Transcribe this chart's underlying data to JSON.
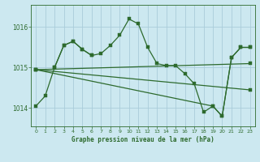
{
  "title": "Graphe pression niveau de la mer (hPa)",
  "background_color": "#cce8f0",
  "grid_color": "#aaccda",
  "line_color": "#2d6a2d",
  "xlim": [
    -0.5,
    23.5
  ],
  "ylim": [
    1013.55,
    1016.55
  ],
  "yticks": [
    1014,
    1015,
    1016
  ],
  "xticks": [
    0,
    1,
    2,
    3,
    4,
    5,
    6,
    7,
    8,
    9,
    10,
    11,
    12,
    13,
    14,
    15,
    16,
    17,
    18,
    19,
    20,
    21,
    22,
    23
  ],
  "series": [
    {
      "x": [
        0,
        1,
        2,
        3,
        4,
        5,
        6,
        7,
        8,
        9,
        10,
        11,
        12,
        13,
        14,
        15,
        16,
        17,
        18,
        19,
        20,
        21,
        22,
        23
      ],
      "y": [
        1014.05,
        1014.3,
        1015.0,
        1015.55,
        1015.65,
        1015.45,
        1015.3,
        1015.35,
        1015.55,
        1015.8,
        1016.2,
        1016.08,
        1015.5,
        1015.1,
        1015.05,
        1015.05,
        1014.85,
        1014.6,
        1013.9,
        1014.05,
        1013.8,
        1015.25,
        1015.5,
        1015.5
      ]
    },
    {
      "x": [
        2,
        3,
        4,
        5,
        6
      ],
      "y": [
        1015.0,
        1015.55,
        1015.65,
        1015.45,
        1015.3
      ]
    },
    {
      "x": [
        0,
        23
      ],
      "y": [
        1014.95,
        1015.1
      ]
    },
    {
      "x": [
        0,
        23
      ],
      "y": [
        1014.95,
        1014.45
      ]
    },
    {
      "x": [
        0,
        19,
        20,
        21,
        22,
        23
      ],
      "y": [
        1014.95,
        1014.05,
        1013.8,
        1015.25,
        1015.5,
        1015.5
      ]
    }
  ]
}
